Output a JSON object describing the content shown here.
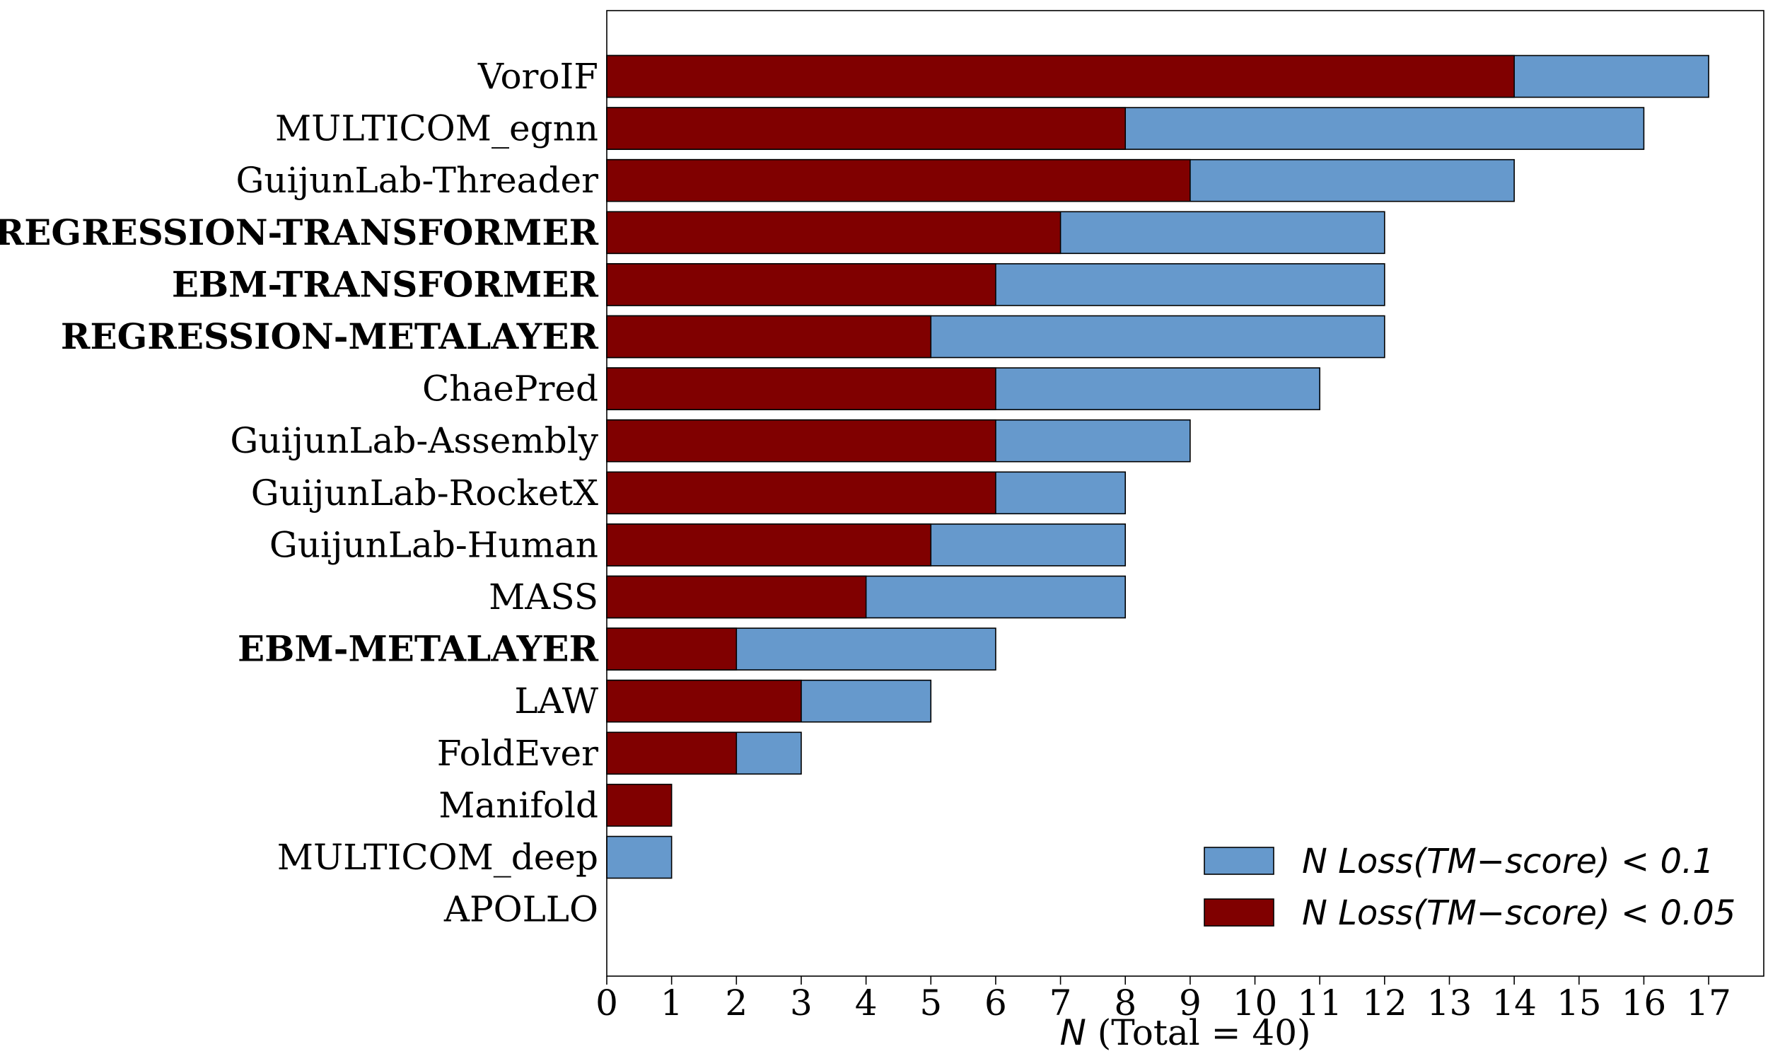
{
  "chart_data": {
    "type": "bar",
    "orientation": "horizontal",
    "stacked": false,
    "categories": [
      "VoroIF",
      "MULTICOM_egnn",
      "GuijunLab-Threader",
      "REGRESSION-TRANSFORMER",
      "EBM-TRANSFORMER",
      "REGRESSION-METALAYER",
      "ChaePred",
      "GuijunLab-Assembly",
      "GuijunLab-RocketX",
      "GuijunLab-Human",
      "MASS",
      "EBM-METALAYER",
      "LAW",
      "FoldEver",
      "Manifold",
      "MULTICOM_deep",
      "APOLLO"
    ],
    "bold_categories": [
      "REGRESSION-TRANSFORMER",
      "EBM-TRANSFORMER",
      "REGRESSION-METALAYER",
      "EBM-METALAYER"
    ],
    "series": [
      {
        "name": "N Loss(TM−score) < 0.1",
        "name_parts": {
          "n": "N",
          "loss": "Loss(",
          "tm": "TM−score",
          "tail": ") < 0.1"
        },
        "color": "#6699cc",
        "values": [
          17,
          16,
          14,
          12,
          12,
          12,
          11,
          9,
          8,
          8,
          8,
          6,
          5,
          3,
          0,
          1,
          0
        ]
      },
      {
        "name": "N Loss(TM−score) < 0.05",
        "name_parts": {
          "n": "N",
          "loss": "Loss(",
          "tm": "TM−score",
          "tail": ") < 0.05"
        },
        "color": "#800000",
        "values": [
          14,
          8,
          9,
          7,
          6,
          5,
          6,
          6,
          6,
          5,
          4,
          2,
          3,
          2,
          1,
          0,
          0
        ]
      }
    ],
    "xlim": [
      0,
      17.85
    ],
    "xticks": [
      "0",
      "1",
      "2",
      "3",
      "4",
      "5",
      "6",
      "7",
      "8",
      "9",
      "10",
      "11",
      "12",
      "13",
      "14",
      "15",
      "16",
      "17"
    ],
    "xlabel": {
      "italic": "N",
      "rest": " (Total = 40)"
    },
    "ylabel": "",
    "title": "",
    "grid": false,
    "legend_position": "lower-right"
  }
}
